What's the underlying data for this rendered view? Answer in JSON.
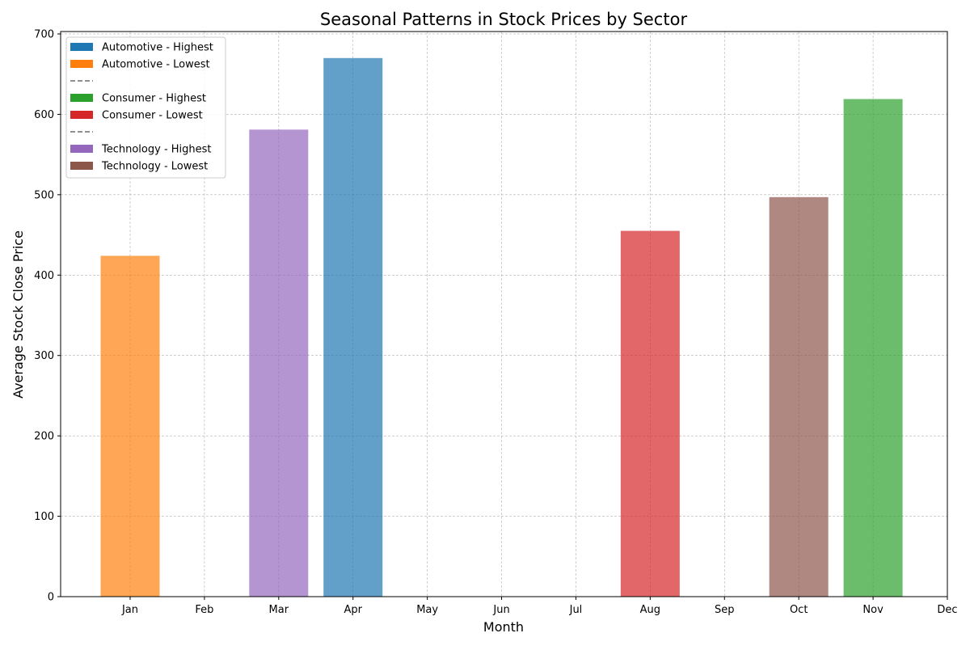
{
  "chart_data": {
    "type": "bar",
    "title": "Seasonal Patterns in Stock Prices by Sector",
    "xlabel": "Month",
    "ylabel": "Average Stock Close Price",
    "categories": [
      "Jan",
      "Feb",
      "Mar",
      "Apr",
      "May",
      "Jun",
      "Jul",
      "Aug",
      "Sep",
      "Oct",
      "Nov",
      "Dec"
    ],
    "x_ticks": [
      "Jan",
      "Feb",
      "Mar",
      "Apr",
      "May",
      "Jun",
      "Jul",
      "Aug",
      "Sep",
      "Oct",
      "Nov",
      "Dec"
    ],
    "ylim": [
      0,
      703
    ],
    "y_ticks": [
      0,
      100,
      200,
      300,
      400,
      500,
      600,
      700
    ],
    "grid": true,
    "legend_position": "top-left",
    "legend": [
      {
        "label": "Automotive - Highest",
        "kind": "patch",
        "color": "#1f77b4"
      },
      {
        "label": "Automotive - Lowest",
        "kind": "patch",
        "color": "#ff7f0e"
      },
      {
        "label": "",
        "kind": "dash",
        "color": "#808080"
      },
      {
        "label": "Consumer - Highest",
        "kind": "patch",
        "color": "#2ca02c"
      },
      {
        "label": "Consumer - Lowest",
        "kind": "patch",
        "color": "#d62728"
      },
      {
        "label": "",
        "kind": "dash",
        "color": "#808080"
      },
      {
        "label": "Technology - Highest",
        "kind": "patch",
        "color": "#9467bd"
      },
      {
        "label": "Technology - Lowest",
        "kind": "patch",
        "color": "#8c564b"
      }
    ],
    "bars": [
      {
        "series": "Automotive - Lowest",
        "category": "Jan",
        "value": 424,
        "color": "#ff7f0e"
      },
      {
        "series": "Technology - Highest",
        "category": "Mar",
        "value": 581,
        "color": "#9467bd"
      },
      {
        "series": "Automotive - Highest",
        "category": "Apr",
        "value": 670,
        "color": "#1f77b4"
      },
      {
        "series": "Consumer - Lowest",
        "category": "Aug",
        "value": 455,
        "color": "#d62728"
      },
      {
        "series": "Technology - Lowest",
        "category": "Oct",
        "value": 497,
        "color": "#8c564b"
      },
      {
        "series": "Consumer - Highest",
        "category": "Nov",
        "value": 619,
        "color": "#2ca02c"
      }
    ]
  }
}
